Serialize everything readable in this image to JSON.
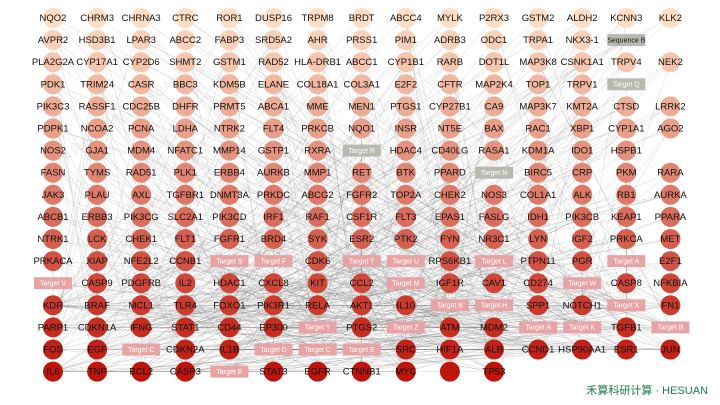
{
  "nodes": {
    "rows": [
      [
        "NQO2",
        "CHRM3",
        "CHRNA3",
        "CTRC",
        "ROR1",
        "DUSP16",
        "TRPM8",
        "BRDT",
        "ABCC4",
        "MYLK",
        "P2RX3",
        "GSTM2",
        "ALDH2",
        "KCNN3",
        "KLK2"
      ],
      [
        "AVPR2",
        "HSD3B1",
        "LPAR3",
        "ABCC2",
        "FABP3",
        "SRD5A2",
        "AHR",
        "PRSS1",
        "PIM1",
        "ADRB3",
        "ODC1",
        "TRPA1",
        "NKX3-1",
        "Sequence B"
      ],
      [
        "PLA2G2A",
        "CYP17A1",
        "CYP2D6",
        "SHMT2",
        "GSTM1",
        "RAD52",
        "HLA-DRB1",
        "ABCC1",
        "CYP1B1",
        "RARB",
        "DOT1L",
        "MAP3K8",
        "CSNK1A1",
        "TRPV4",
        "NEK2"
      ],
      [
        "PDK1",
        "TRIM24",
        "CASR",
        "BBC3",
        "KDM5B",
        "ELANE",
        "COL18A1",
        "COL3A1",
        "E2F2",
        "CFTR",
        "MAP2K4",
        "TOP1",
        "TRPV1",
        "Target Q"
      ],
      [
        "PIK3C3",
        "RASSF1",
        "CDC25B",
        "DHFR",
        "PRMT5",
        "ABCA1",
        "MME",
        "MEN1",
        "PTGS1",
        "CYP27B1",
        "CA9",
        "MAP3K7",
        "KMT2A",
        "CTSD",
        "LRRK2"
      ],
      [
        "PDPK1",
        "NCOA2",
        "PCNA",
        "LDHA",
        "NTRK2",
        "FLT4",
        "PRKCB",
        "NQO1",
        "INSR",
        "NT5E",
        "BAX",
        "RAC1",
        "XBP1",
        "CYP1A1",
        "AGO2"
      ],
      [
        "NOS2",
        "GJA1",
        "MDM4",
        "NFATC1",
        "MMP14",
        "GSTP1",
        "RXRA",
        "Target R",
        "HDAC4",
        "CD40LG",
        "RASA1",
        "KDM1A",
        "IDO1",
        "HSPB1"
      ],
      [
        "FASN",
        "TYMS",
        "RAD51",
        "PLK1",
        "ERBB4",
        "AURKB",
        "MMP1",
        "RET",
        "BTK",
        "PPARD",
        "Target N",
        "BIRC5",
        "CRP",
        "PKM",
        "RARA"
      ],
      [
        "JAK3",
        "PLAU",
        "AXL",
        "TGFBR1",
        "DNMT3A",
        "PRKDC",
        "ABCG2",
        "FGFR2",
        "TOP2A",
        "CHEK2",
        "NOS3",
        "COL1A1",
        "ALK",
        "RB1",
        "AURKA"
      ],
      [
        "ABCB1",
        "ERBB3",
        "PIK3CG",
        "SLC2A1",
        "PIK3CD",
        "IRF1",
        "RAF1",
        "CSF1R",
        "FLT3",
        "EPAS1",
        "FASLG",
        "IDH1",
        "PIK3CB",
        "KEAP1",
        "PPARA"
      ],
      [
        "NTRK1",
        "LCK",
        "CHEK1",
        "FLT1",
        "FGFR1",
        "BRD4",
        "SYK",
        "ESR2",
        "PTK2",
        "FYN",
        "NR3C1",
        "LYN",
        "IGF2",
        "PRKCA",
        "MET"
      ],
      [
        "PRKACA",
        "XIAP",
        "NFE2L2",
        "CCNB1",
        "Target S",
        "Target F",
        "CDK6",
        "Target T",
        "Target U",
        "RPS6KB1",
        "Target L",
        "PTPN11",
        "PGR",
        "Target A",
        "E2F1"
      ],
      [
        "Target V",
        "CASP9",
        "PDGFRB",
        "IL2",
        "HDAC1",
        "CXCL8",
        "KIT",
        "CCL2",
        "Target M",
        "IGF1R",
        "CAV1",
        "CD274",
        "Target W",
        "CASP8",
        "NFKBIA"
      ],
      [
        "KDR",
        "BRAF",
        "MCL1",
        "TLR4",
        "FOXO1",
        "PIK3R1",
        "RELA",
        "AKT1",
        "IL10",
        "Target B",
        "Target H",
        "SPP1",
        "NOTCH1",
        "Target X",
        "FN1"
      ],
      [
        "PARP1",
        "CDKN1A",
        "IFNG",
        "STAT1",
        "CD44",
        "EP300",
        "Target Y",
        "PTGS2",
        "Target Z",
        "ATM",
        "MDM2",
        "Target A",
        "Target K",
        "TGFB1",
        "Target B"
      ],
      [
        "FOS",
        "EGF",
        "Target C",
        "CDKN2A",
        "IL1B",
        "Target D",
        "Target C",
        "Target E",
        "SRC",
        "HIF1A",
        "ALB",
        "CCND1",
        "HSP90AA1",
        "ESR1",
        "JUN"
      ],
      [
        "IL6",
        "TNF",
        "BCL2",
        "CASP3",
        "Target E",
        "STAT3",
        "EGFR",
        "CTNNB1",
        "MYC",
        "TP53"
      ]
    ]
  },
  "brand": "禾算科研计算 · HESUAN"
}
